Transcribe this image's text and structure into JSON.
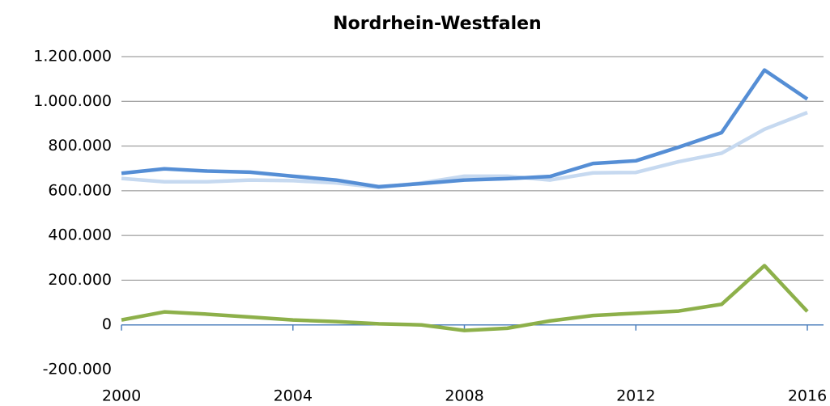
{
  "chart_data": {
    "type": "line",
    "title": "Nordrhein-Westfalen",
    "x": [
      2000,
      2001,
      2002,
      2003,
      2004,
      2005,
      2006,
      2007,
      2008,
      2009,
      2010,
      2011,
      2012,
      2013,
      2014,
      2015,
      2016
    ],
    "series": [
      {
        "color": "#c6d9f0",
        "values": [
          655000,
          640000,
          640000,
          648000,
          645000,
          635000,
          615000,
          635000,
          665000,
          665000,
          648000,
          680000,
          682000,
          730000,
          768000,
          875000,
          950000
        ]
      },
      {
        "color": "#558ed5",
        "values": [
          678000,
          698000,
          688000,
          683000,
          665000,
          648000,
          618000,
          632000,
          648000,
          654000,
          664000,
          722000,
          734000,
          795000,
          860000,
          1140000,
          1010000
        ]
      },
      {
        "color": "#8db04a",
        "values": [
          22000,
          58000,
          48000,
          35000,
          22000,
          15000,
          5000,
          0,
          -25000,
          -15000,
          18000,
          42000,
          52000,
          62000,
          92000,
          265000,
          60000
        ]
      }
    ],
    "xlim": [
      2000,
      2016
    ],
    "xticks": [
      2000,
      2004,
      2008,
      2012,
      2016
    ],
    "ylim": [
      -200000,
      1200000
    ],
    "yticks": [
      {
        "value": -200000,
        "label": "-200.000"
      },
      0,
      {
        "value": 200000,
        "label": "200.000"
      },
      {
        "value": 400000,
        "label": "400.000"
      },
      {
        "value": 600000,
        "label": "600.000"
      },
      {
        "value": 800000,
        "label": "800.000"
      },
      {
        "value": 1000000,
        "label": "1.000.000"
      },
      {
        "value": 1200000,
        "label": "1.200.000"
      }
    ],
    "grid": true
  }
}
